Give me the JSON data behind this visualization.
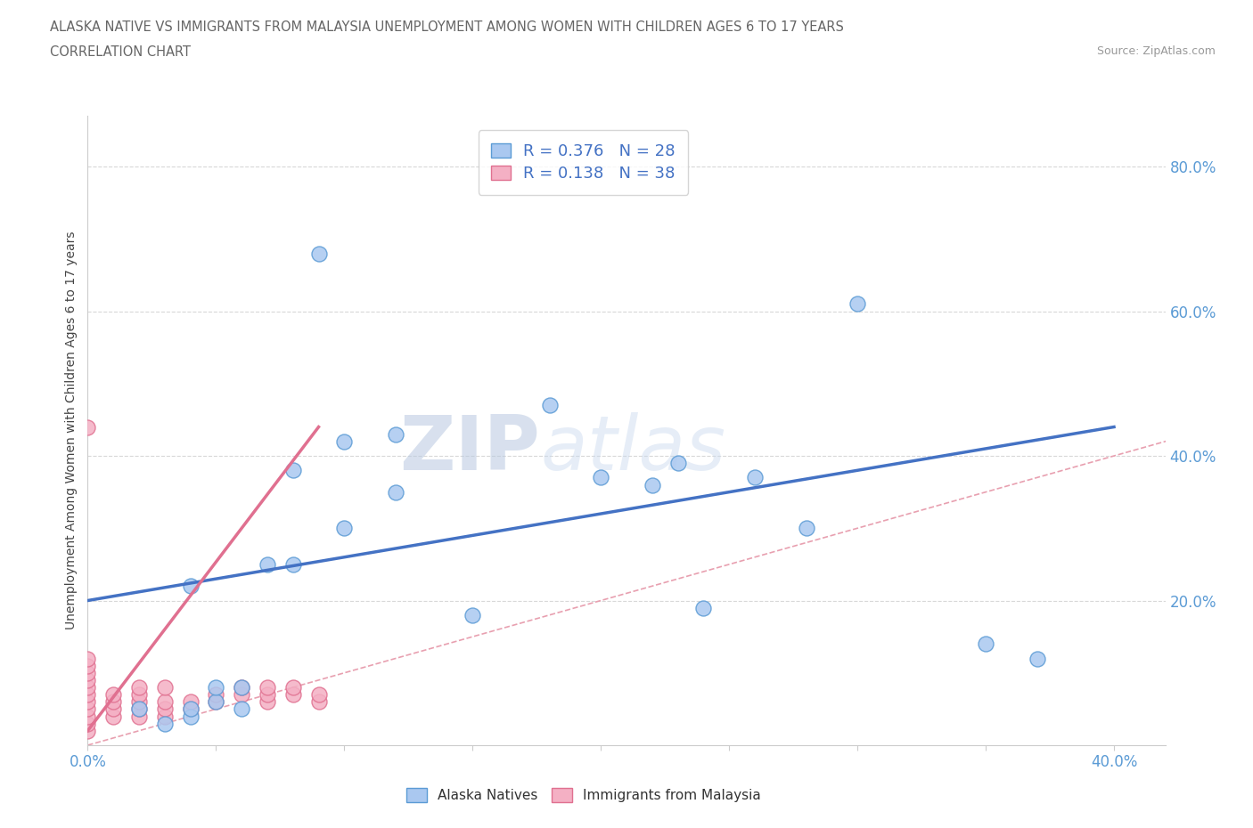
{
  "title_line1": "ALASKA NATIVE VS IMMIGRANTS FROM MALAYSIA UNEMPLOYMENT AMONG WOMEN WITH CHILDREN AGES 6 TO 17 YEARS",
  "title_line2": "CORRELATION CHART",
  "source": "Source: ZipAtlas.com",
  "ylabel": "Unemployment Among Women with Children Ages 6 to 17 years",
  "xlim": [
    0.0,
    0.42
  ],
  "ylim": [
    0.0,
    0.87
  ],
  "alaska_color": "#aac8f0",
  "alaska_edge": "#5b9bd5",
  "malaysia_color": "#f4b0c4",
  "malaysia_edge": "#e07090",
  "trend_blue": "#4472c4",
  "trend_pink": "#e07090",
  "legend_blue_r": "0.376",
  "legend_blue_n": "28",
  "legend_pink_r": "0.138",
  "legend_pink_n": "38",
  "watermark_zip": "ZIP",
  "watermark_atlas": "atlas",
  "alaska_x": [
    0.03,
    0.05,
    0.06,
    0.06,
    0.07,
    0.08,
    0.08,
    0.09,
    0.1,
    0.1,
    0.12,
    0.12,
    0.15,
    0.18,
    0.2,
    0.22,
    0.23,
    0.24,
    0.26,
    0.28,
    0.3,
    0.35,
    0.37,
    0.04,
    0.04,
    0.05,
    0.02,
    0.04
  ],
  "alaska_y": [
    0.03,
    0.06,
    0.05,
    0.08,
    0.25,
    0.25,
    0.38,
    0.68,
    0.3,
    0.42,
    0.35,
    0.43,
    0.18,
    0.47,
    0.37,
    0.36,
    0.39,
    0.19,
    0.37,
    0.3,
    0.61,
    0.14,
    0.12,
    0.04,
    0.22,
    0.08,
    0.05,
    0.05
  ],
  "malaysia_x": [
    0.0,
    0.0,
    0.0,
    0.0,
    0.0,
    0.0,
    0.0,
    0.0,
    0.0,
    0.0,
    0.0,
    0.0,
    0.01,
    0.01,
    0.01,
    0.01,
    0.02,
    0.02,
    0.02,
    0.02,
    0.02,
    0.03,
    0.03,
    0.03,
    0.03,
    0.04,
    0.04,
    0.05,
    0.05,
    0.06,
    0.06,
    0.07,
    0.07,
    0.07,
    0.08,
    0.08,
    0.09,
    0.09
  ],
  "malaysia_y": [
    0.02,
    0.03,
    0.04,
    0.05,
    0.06,
    0.07,
    0.08,
    0.09,
    0.1,
    0.11,
    0.12,
    0.44,
    0.04,
    0.05,
    0.06,
    0.07,
    0.04,
    0.05,
    0.06,
    0.07,
    0.08,
    0.04,
    0.05,
    0.06,
    0.08,
    0.05,
    0.06,
    0.06,
    0.07,
    0.07,
    0.08,
    0.06,
    0.07,
    0.08,
    0.07,
    0.08,
    0.06,
    0.07
  ],
  "alaska_trend_x": [
    0.0,
    0.4
  ],
  "alaska_trend_y": [
    0.2,
    0.44
  ],
  "malaysia_trend_x": [
    0.0,
    0.09
  ],
  "malaysia_trend_y": [
    0.02,
    0.44
  ],
  "ref_line_x": [
    0.0,
    0.87
  ],
  "ref_line_y": [
    0.0,
    0.87
  ],
  "ytick_vals": [
    0.2,
    0.4,
    0.6,
    0.8
  ],
  "ytick_labels": [
    "20.0%",
    "40.0%",
    "60.0%",
    "80.0%"
  ],
  "xtick_vals": [
    0.0,
    0.05,
    0.1,
    0.15,
    0.2,
    0.25,
    0.3,
    0.35,
    0.4
  ],
  "xtick_labels": [
    "0.0%",
    "",
    "",
    "",
    "",
    "",
    "",
    "",
    "40.0%"
  ],
  "grid_color": "#d8d8d8",
  "ref_line_color": "#e8a0b0",
  "ref_line_style": "--"
}
